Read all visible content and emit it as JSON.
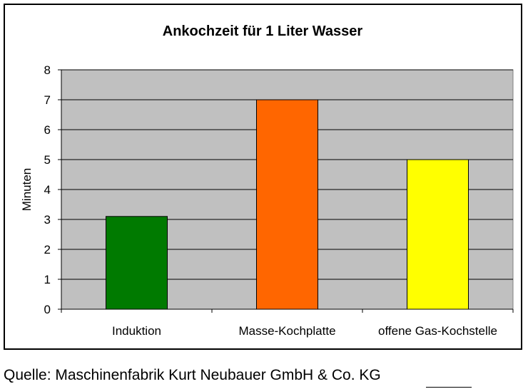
{
  "chart_data": {
    "type": "bar",
    "title": "Ankochzeit für 1 Liter Wasser",
    "xlabel": "",
    "ylabel": "Minuten",
    "categories": [
      "Induktion",
      "Masse-Kochplatte",
      "offene Gas-Kochstelle"
    ],
    "values": [
      3.1,
      7,
      5
    ],
    "bar_colors": [
      "#007a00",
      "#ff6600",
      "#ffff00"
    ],
    "ylim": [
      0,
      8
    ],
    "yticks": [
      0,
      1,
      2,
      3,
      4,
      5,
      6,
      7,
      8
    ],
    "grid": true,
    "plot_background": "#c0c0c0",
    "legend": "none"
  },
  "source": "Quelle: Maschinenfabrik Kurt Neubauer GmbH & Co. KG"
}
